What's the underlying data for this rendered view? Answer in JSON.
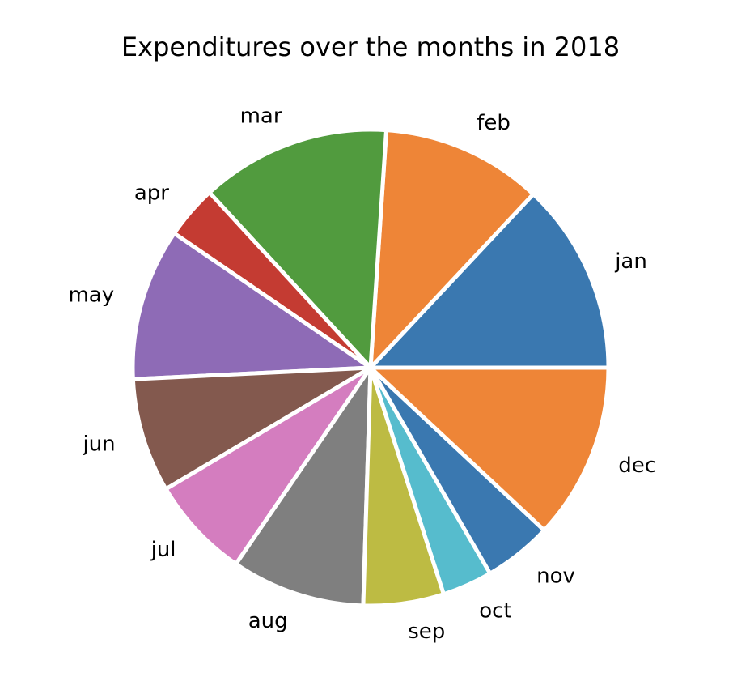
{
  "chart_data": {
    "type": "pie",
    "title": "Expenditures over the months in 2018",
    "start_angle_deg": 0,
    "direction": "counterclockwise",
    "slices": [
      {
        "label": "jan",
        "value": 12.6,
        "color": "#3a78b0"
      },
      {
        "label": "feb",
        "value": 10.6,
        "color": "#ee8537"
      },
      {
        "label": "mar",
        "value": 12.5,
        "color": "#519b3e"
      },
      {
        "label": "apr",
        "value": 3.5,
        "color": "#c43b32"
      },
      {
        "label": "may",
        "value": 10.0,
        "color": "#8e6bb6"
      },
      {
        "label": "jun",
        "value": 7.5,
        "color": "#83594e"
      },
      {
        "label": "jul",
        "value": 6.7,
        "color": "#d47dbf"
      },
      {
        "label": "aug",
        "value": 8.8,
        "color": "#7f7f7f"
      },
      {
        "label": "sep",
        "value": 5.3,
        "color": "#bdbb43"
      },
      {
        "label": "oct",
        "value": 3.3,
        "color": "#56bccd"
      },
      {
        "label": "nov",
        "value": 4.5,
        "color": "#3a78b0"
      },
      {
        "label": "dec",
        "value": 11.6,
        "color": "#ee8537"
      }
    ]
  }
}
